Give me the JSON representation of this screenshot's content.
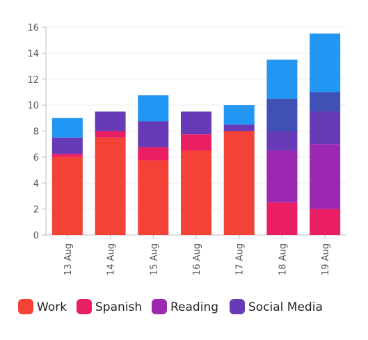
{
  "chart_data": {
    "type": "bar",
    "stacked": true,
    "categories": [
      "13 Aug",
      "14 Aug",
      "15 Aug",
      "16 Aug",
      "17 Aug",
      "18 Aug",
      "19 Aug"
    ],
    "ylim": [
      0,
      16
    ],
    "yticks": [
      0,
      2,
      4,
      6,
      8,
      10,
      12,
      14,
      16
    ],
    "grid": true,
    "legend_placement": "bottom",
    "series": [
      {
        "name": "Work",
        "color": "#f44336",
        "values": [
          6.0,
          7.5,
          5.75,
          6.5,
          8.0,
          0.0,
          0.0
        ]
      },
      {
        "name": "Spanish",
        "color": "#e91e63",
        "values": [
          0.25,
          0.5,
          1.0,
          1.25,
          0.0,
          2.5,
          2.0
        ]
      },
      {
        "name": "Reading",
        "color": "#9c27b0",
        "values": [
          0.0,
          0.0,
          0.0,
          0.0,
          0.0,
          4.0,
          5.0
        ]
      },
      {
        "name": "Social Media",
        "color": "#673ab7",
        "values": [
          1.25,
          1.5,
          2.0,
          1.75,
          0.5,
          1.5,
          2.5
        ]
      },
      {
        "name": "",
        "color": "#3f51b5",
        "values": [
          0.0,
          0.0,
          0.0,
          0.0,
          0.0,
          2.5,
          1.5
        ]
      },
      {
        "name": "",
        "color": "#2196f3",
        "values": [
          1.5,
          0.0,
          2.0,
          0.0,
          1.5,
          3.0,
          4.5
        ]
      }
    ]
  }
}
